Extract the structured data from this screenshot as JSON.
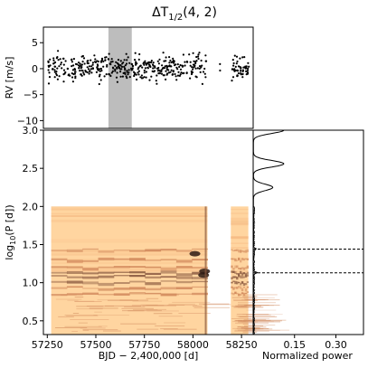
{
  "title": {
    "prefix": "ΔT",
    "subscript": "1/2",
    "suffix": "(4, 2)"
  },
  "chart_data": [
    {
      "type": "scatter",
      "panel": "rv-time-series",
      "ylabel": "RV [m/s]",
      "ylim": [
        -11.5,
        8
      ],
      "yticks": [
        5,
        0,
        -5,
        -10
      ],
      "ytick_labels": [
        "5",
        "0",
        "−5",
        "−10"
      ],
      "shaded_span_x": [
        57565,
        57685
      ],
      "shaded_color": "#bdbdbd",
      "segments": [
        {
          "x_range": [
            57255,
            58070
          ],
          "n": 420,
          "sd": 1.2
        },
        {
          "x_range": [
            58135,
            58140
          ],
          "n": 2,
          "sd": 0.4
        },
        {
          "x_range": [
            58200,
            58290
          ],
          "n": 55,
          "sd": 1.1
        }
      ],
      "point_color": "#000000"
    },
    {
      "type": "heatmap",
      "panel": "period-time-map",
      "xlabel_main": "BJD − 2,400,000 [d]",
      "ylabel_base": "log",
      "ylabel_sub": "10",
      "ylabel_rest": "(P [d])",
      "xlim": [
        57230,
        58310
      ],
      "ylim": [
        0.32,
        3.0
      ],
      "xticks": [
        57250,
        57500,
        57750,
        58000,
        58250
      ],
      "xtick_labels": [
        "57250",
        "57500",
        "57750",
        "58000",
        "58250"
      ],
      "yticks": [
        0.5,
        1.0,
        1.5,
        2.0,
        2.5,
        3.0
      ],
      "ytick_labels": [
        "0.5",
        "1.0",
        "1.5",
        "2.0",
        "2.5",
        "3.0"
      ],
      "blocks": [
        {
          "x_range": [
            57270,
            58075
          ],
          "y_range": [
            0.32,
            2.0
          ]
        },
        {
          "x_range": [
            58195,
            58285
          ],
          "y_range": [
            0.32,
            2.0
          ]
        }
      ],
      "bands_logP": [
        0.86,
        0.93,
        1.0,
        1.08,
        1.13,
        1.2,
        1.3,
        1.42
      ],
      "colormap": [
        "#ffd5a0",
        "#f3b47c",
        "#d1895c",
        "#8a5a40",
        "#2e1b14"
      ]
    },
    {
      "type": "line",
      "panel": "normalized-power",
      "xlabel": "Normalized power",
      "xlim": [
        0,
        0.4
      ],
      "xticks": [
        0.15,
        0.3
      ],
      "xtick_labels": [
        "0.15",
        "0.30"
      ],
      "ylim": [
        0.32,
        3.0
      ],
      "dashed_lines_logP": [
        1.44,
        1.13
      ],
      "peaks": [
        {
          "logP": 3.0,
          "power": 0.11
        },
        {
          "logP": 2.56,
          "power": 0.11
        },
        {
          "logP": 2.25,
          "power": 0.07
        },
        {
          "logP": 1.44,
          "power": 0.008
        },
        {
          "logP": 1.13,
          "power": 0.012
        }
      ]
    }
  ]
}
